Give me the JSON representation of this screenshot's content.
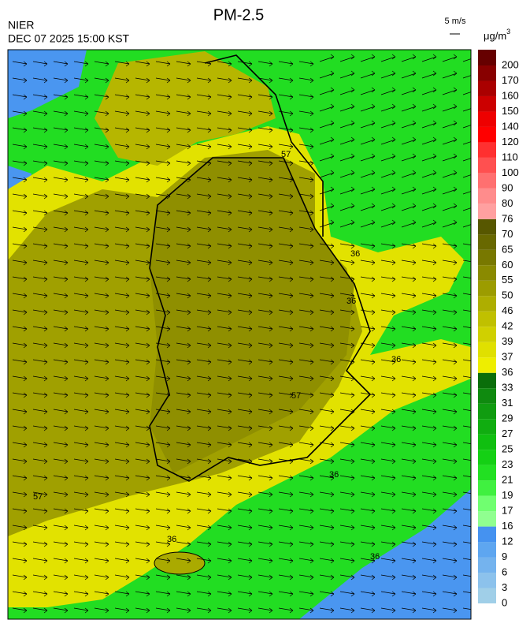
{
  "header": {
    "title": "PM-2.5",
    "agency": "NIER",
    "timestamp": "DEC 07 2025 15:00 KST",
    "wind_scale": "5 m/s",
    "unit": "μg/m",
    "unit_superscript": "3"
  },
  "colorbar": {
    "levels": [
      0,
      3,
      6,
      9,
      12,
      16,
      17,
      19,
      21,
      23,
      25,
      27,
      29,
      31,
      33,
      36,
      37,
      39,
      42,
      46,
      50,
      55,
      60,
      65,
      70,
      76,
      80,
      90,
      100,
      110,
      120,
      140,
      150,
      160,
      170,
      200
    ],
    "colors": [
      "#a0cfe8",
      "#8cc2ec",
      "#74b3ee",
      "#5ea6f0",
      "#4592f0",
      "#90ff90",
      "#70ff70",
      "#40f040",
      "#22e022",
      "#14d014",
      "#10bf10",
      "#10ad10",
      "#109c10",
      "#0f8a0f",
      "#0a6e0a",
      "#eeee00",
      "#e0e000",
      "#d0d000",
      "#c0c000",
      "#aeae00",
      "#9c9c00",
      "#8a8a00",
      "#787800",
      "#686800",
      "#575700",
      "#ffa0a0",
      "#ff8c8c",
      "#ff7070",
      "#ff5050",
      "#ff3030",
      "#ff0000",
      "#ee0000",
      "#cc0000",
      "#aa0000",
      "#880000",
      "#660000"
    ]
  },
  "map": {
    "contour_labels": [
      "36",
      "36",
      "36",
      "36",
      "36",
      "36",
      "57",
      "57",
      "57"
    ]
  }
}
